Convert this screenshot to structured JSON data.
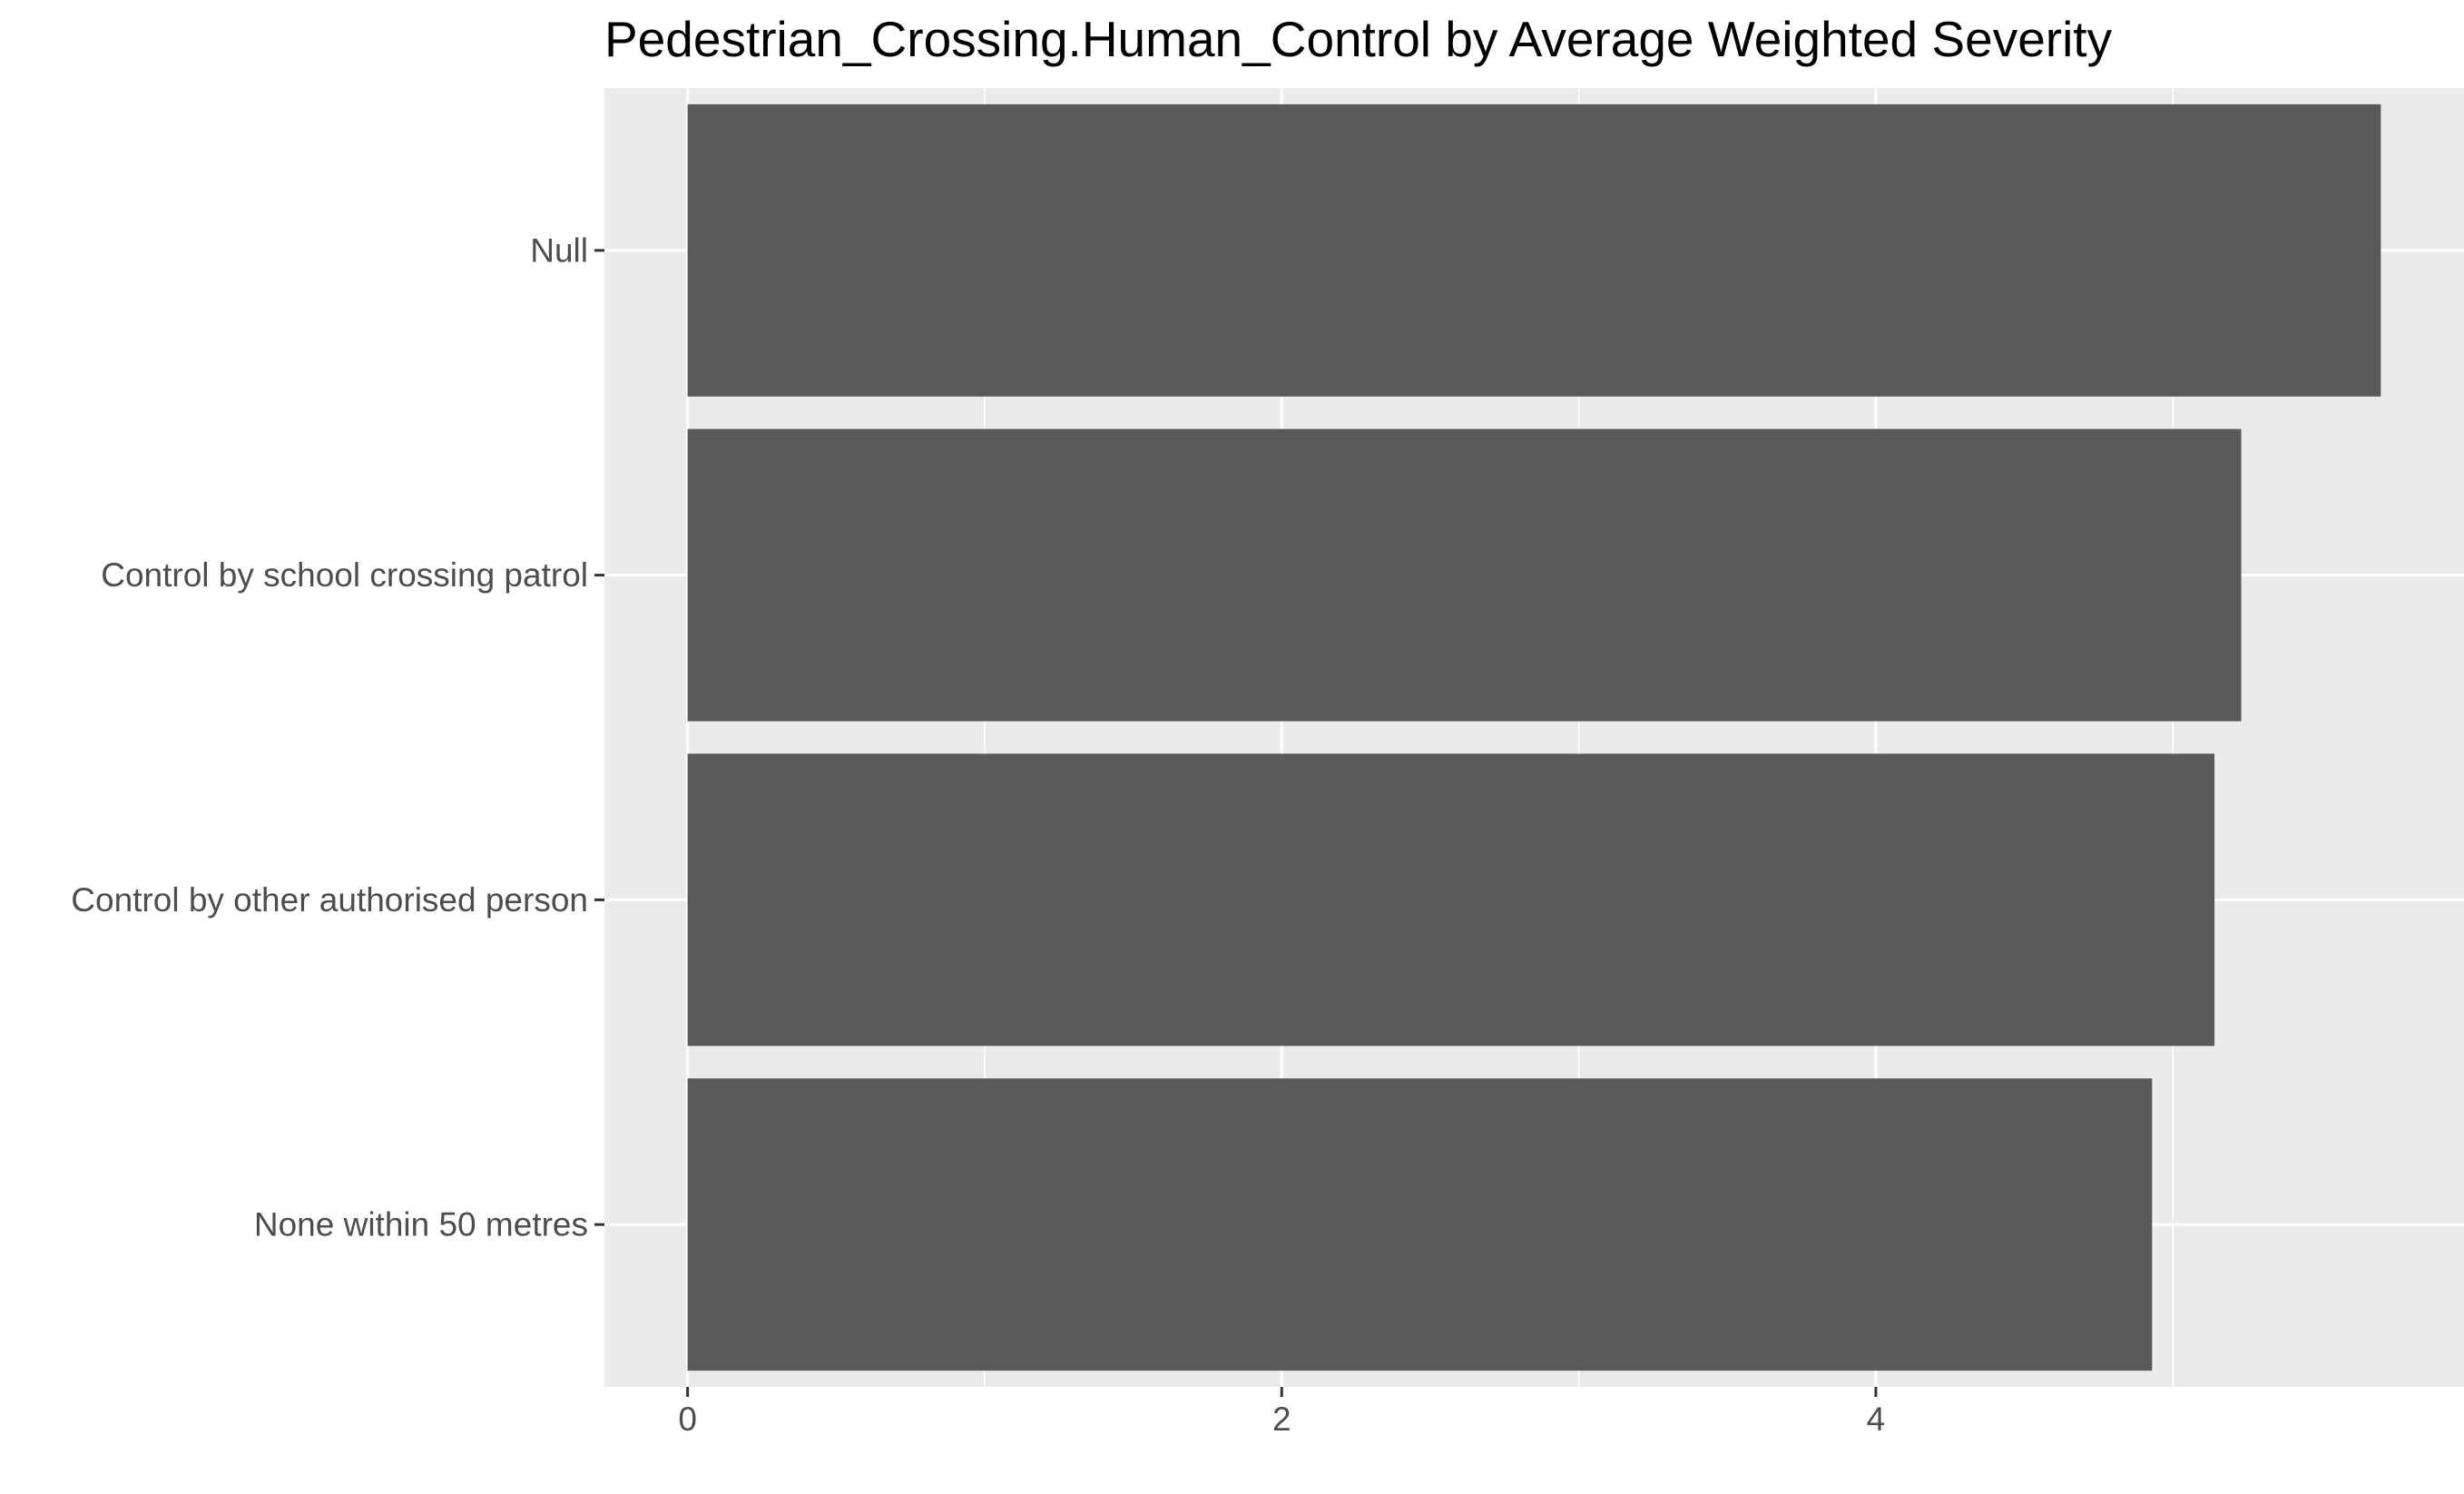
{
  "chart_data": {
    "type": "bar",
    "orientation": "horizontal",
    "title": "Pedestrian_Crossing.Human_Control by Average Weighted Severity",
    "xlabel": "",
    "ylabel": "",
    "categories": [
      "Null",
      "Control by school crossing patrol",
      "Control by other authorised person",
      "None within 50 metres"
    ],
    "values": [
      5.7,
      5.23,
      5.14,
      4.93
    ],
    "xlim": [
      -0.28,
      5.98
    ],
    "x_ticks": [
      0,
      2,
      4
    ],
    "x_tick_labels": [
      "0",
      "2",
      "4"
    ],
    "x_minor_ticks": [
      1,
      3,
      5
    ],
    "grid": true,
    "legend": "none",
    "colors": {
      "bar": "#595959",
      "panel_background": "#ebebeb",
      "grid": "#ffffff",
      "tick_text": "#4d4d4d",
      "tick_mark": "#333333",
      "title": "#000000"
    }
  }
}
